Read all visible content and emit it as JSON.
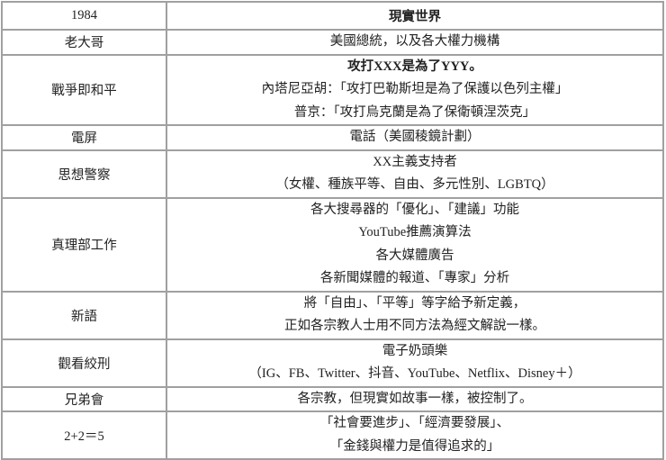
{
  "header": {
    "col1": "1984",
    "col2": "現實世界"
  },
  "rows": [
    {
      "term": "老大哥",
      "lines": [
        "美國總統，以及各大權力機構"
      ]
    },
    {
      "term": "戰爭即和平",
      "lines": [
        "攻打XXX是為了YYY。",
        "內塔尼亞胡：「攻打巴勒斯坦是為了保護以色列主權」",
        "普京：「攻打烏克蘭是為了保衛頓涅茨克」"
      ]
    },
    {
      "term": "電屏",
      "lines": [
        "電話（美國稜鏡計劃）"
      ]
    },
    {
      "term": "思想警察",
      "lines": [
        "XX主義支持者",
        "（女權、種族平等、自由、多元性別、LGBTQ）"
      ]
    },
    {
      "term": "真理部工作",
      "lines": [
        "各大搜尋器的「優化」、「建議」功能",
        "YouTube推薦演算法",
        "各大媒體廣告",
        "各新聞媒體的報道、「專家」分析"
      ]
    },
    {
      "term": "新語",
      "lines": [
        "將「自由」、「平等」等字給予新定義，",
        "正如各宗教人士用不同方法為經文解說一樣。"
      ]
    },
    {
      "term": "觀看絞刑",
      "lines": [
        "電子奶頭樂",
        "（IG、FB、Twitter、抖音、YouTube、Netflix、Disney＋）"
      ]
    },
    {
      "term": "兄弟會",
      "lines": [
        "各宗教，但現實如故事一樣，被控制了。"
      ]
    },
    {
      "term": "2+2＝5",
      "lines": [
        "「社會要進步」、「經濟要發展」、",
        "「金錢與權力是值得追求的」"
      ]
    }
  ]
}
